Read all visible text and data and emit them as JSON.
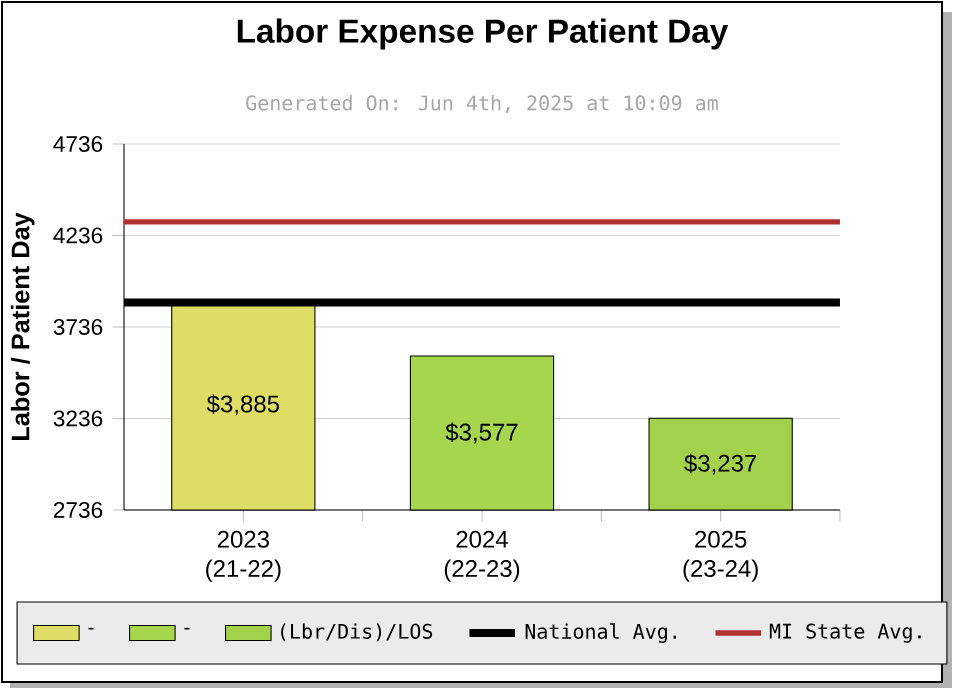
{
  "chart_data": {
    "type": "bar",
    "title": "Labor Expense Per Patient Day",
    "subtitle": "Generated On: Jun 4th, 2025 at 10:09 am",
    "ylabel": "Labor / Patient Day",
    "categories": [
      "2023 (21-22)",
      "2024 (22-23)",
      "2025 (23-24)"
    ],
    "series": [
      {
        "name": "-",
        "color": "#dede66",
        "values": [
          3885,
          null,
          null
        ],
        "value_labels": [
          "$3,885",
          null,
          null
        ]
      },
      {
        "name": "-",
        "color": "#a6d64e",
        "values": [
          null,
          3577,
          null
        ],
        "value_labels": [
          null,
          "$3,577",
          null
        ]
      },
      {
        "name": "(Lbr/Dis)/LOS",
        "color": "#a2d24c",
        "values": [
          null,
          null,
          3237
        ],
        "value_labels": [
          null,
          null,
          "$3,237"
        ]
      }
    ],
    "ylim": [
      2736,
      4736
    ],
    "yticks": [
      2736,
      3236,
      3736,
      4236,
      4736
    ],
    "grid": "y",
    "legend": "bottom",
    "ref_lines": [
      {
        "axis": "y",
        "value": 3870,
        "label": "National Avg.",
        "color": "#000000"
      },
      {
        "axis": "y",
        "value": 4310,
        "label": "MI State Avg.",
        "color": "#b03030"
      }
    ]
  }
}
